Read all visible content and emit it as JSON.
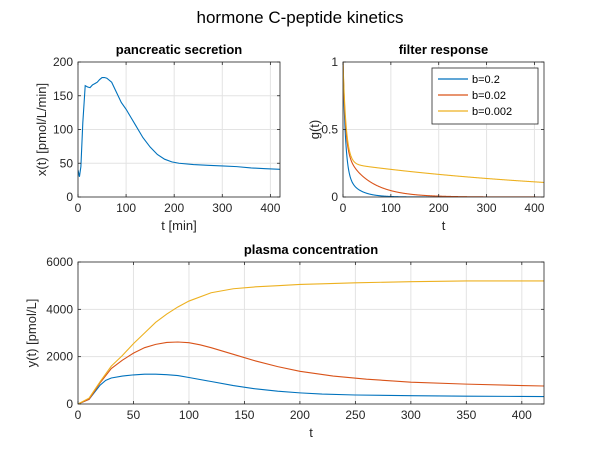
{
  "figure": {
    "title": "hormone C-peptide kinetics"
  },
  "chart_data": [
    {
      "id": "secretion",
      "type": "line",
      "title": "pancreatic secretion",
      "xlabel": "t [min]",
      "ylabel": "x(t) [pmol/L/min]",
      "xlim": [
        0,
        420
      ],
      "ylim": [
        0,
        200
      ],
      "xticks": [
        0,
        100,
        200,
        300,
        400
      ],
      "yticks": [
        0,
        50,
        100,
        150,
        200
      ],
      "grid": true,
      "series": [
        {
          "color": "#0072BD",
          "x": [
            0,
            3,
            6,
            10,
            15,
            20,
            25,
            30,
            35,
            40,
            45,
            50,
            55,
            60,
            70,
            80,
            90,
            100,
            110,
            120,
            135,
            150,
            165,
            180,
            195,
            210,
            240,
            270,
            300,
            330,
            360,
            390,
            420
          ],
          "y": [
            40,
            30,
            45,
            110,
            165,
            163,
            162,
            166,
            168,
            170,
            174,
            177,
            177,
            176,
            170,
            155,
            140,
            130,
            118,
            106,
            88,
            74,
            63,
            56,
            52,
            50,
            48,
            47,
            46,
            45,
            43,
            42,
            41
          ]
        }
      ]
    },
    {
      "id": "filter",
      "type": "line",
      "title": "filter response",
      "xlabel": "t",
      "ylabel": "g(t)",
      "xlim": [
        0,
        420
      ],
      "ylim": [
        0,
        1
      ],
      "xticks": [
        0,
        100,
        200,
        300,
        400
      ],
      "yticks": [
        0,
        0.5,
        1
      ],
      "grid": true,
      "legend_position": "top-right",
      "series": [
        {
          "name": "b=0.2",
          "color": "#0072BD",
          "function": "biexp",
          "a1": 0.8,
          "k1": 0.2,
          "a2": 0.2,
          "k2": 0.04
        },
        {
          "name": "b=0.02",
          "color": "#D95319",
          "function": "biexp",
          "a1": 0.65,
          "k1": 0.2,
          "a2": 0.35,
          "k2": 0.02
        },
        {
          "name": "b=0.002",
          "color": "#EDB120",
          "function": "biexp",
          "a1": 0.75,
          "k1": 0.15,
          "a2": 0.25,
          "k2": 0.002
        }
      ]
    },
    {
      "id": "plasma",
      "type": "line",
      "title": "plasma concentration",
      "xlabel": "t",
      "ylabel": "y(t) [pmol/L]",
      "xlim": [
        0,
        420
      ],
      "ylim": [
        0,
        6000
      ],
      "xticks": [
        0,
        50,
        100,
        150,
        200,
        250,
        300,
        350,
        400
      ],
      "yticks": [
        0,
        2000,
        4000,
        6000
      ],
      "grid": true,
      "series": [
        {
          "color": "#0072BD",
          "x": [
            0,
            10,
            20,
            25,
            30,
            40,
            50,
            60,
            70,
            80,
            90,
            100,
            120,
            140,
            160,
            180,
            200,
            220,
            250,
            300,
            350,
            400,
            420
          ],
          "y": [
            0,
            200,
            800,
            1000,
            1100,
            1180,
            1230,
            1260,
            1260,
            1240,
            1200,
            1120,
            950,
            780,
            640,
            540,
            470,
            420,
            380,
            350,
            330,
            320,
            315
          ]
        },
        {
          "color": "#D95319",
          "x": [
            0,
            10,
            20,
            30,
            40,
            50,
            60,
            70,
            80,
            90,
            100,
            110,
            120,
            140,
            160,
            180,
            200,
            230,
            260,
            300,
            350,
            400,
            420
          ],
          "y": [
            0,
            200,
            900,
            1500,
            1850,
            2150,
            2380,
            2520,
            2600,
            2620,
            2590,
            2500,
            2380,
            2100,
            1820,
            1580,
            1380,
            1180,
            1050,
            920,
            840,
            780,
            760
          ]
        },
        {
          "color": "#EDB120",
          "x": [
            0,
            10,
            20,
            30,
            40,
            50,
            60,
            70,
            80,
            90,
            100,
            120,
            140,
            160,
            180,
            200,
            220,
            250,
            300,
            350,
            400,
            420
          ],
          "y": [
            0,
            250,
            950,
            1600,
            2050,
            2550,
            3000,
            3450,
            3800,
            4100,
            4350,
            4700,
            4870,
            4950,
            5000,
            5050,
            5080,
            5120,
            5170,
            5200,
            5200,
            5200
          ]
        }
      ]
    }
  ]
}
